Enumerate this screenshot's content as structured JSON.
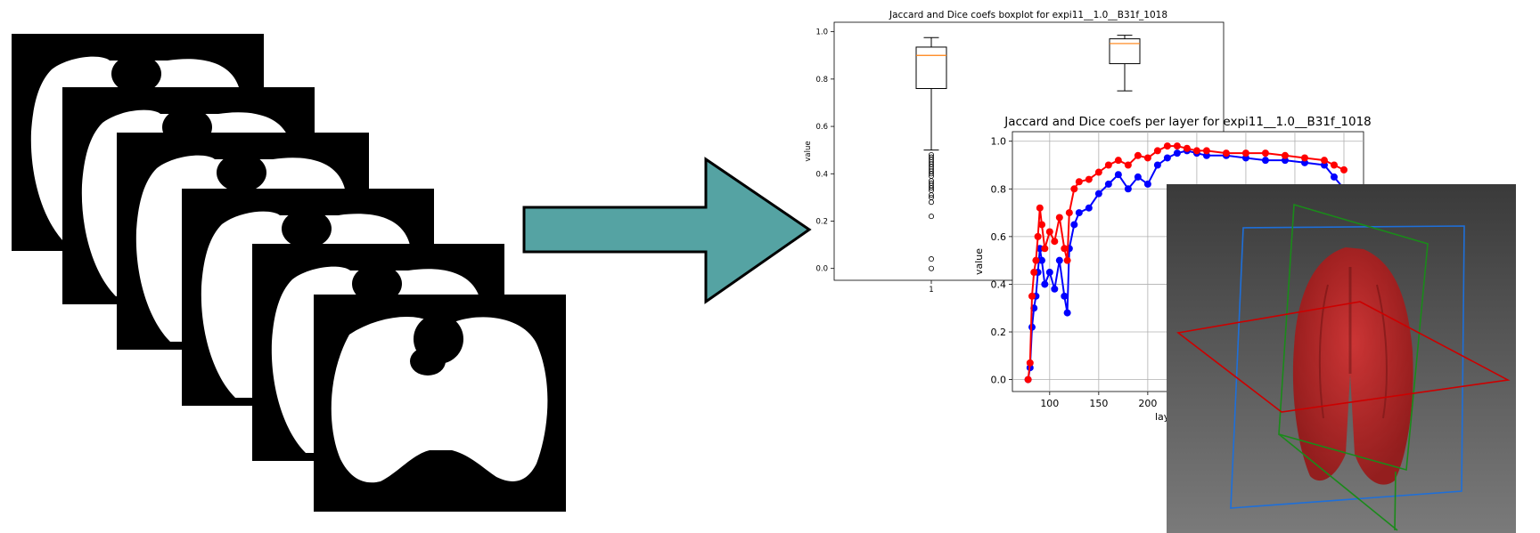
{
  "boxplot": {
    "title": "Jaccard and Dice coefs boxplot for expi11__1.0__B31f_1018",
    "ylabel": "value",
    "xtick": "1",
    "yticks": [
      "0.0",
      "0.2",
      "0.4",
      "0.6",
      "0.8",
      "1.0"
    ]
  },
  "lineplot": {
    "title": "Jaccard and Dice coefs per layer for expi11__1.0__B31f_1018",
    "ylabel": "value",
    "xlabel_visible": "lay",
    "xticks": [
      "100",
      "150",
      "200"
    ],
    "yticks": [
      "0.0",
      "0.2",
      "0.4",
      "0.6",
      "0.8",
      "1.0"
    ]
  },
  "chart_data": [
    {
      "type": "box",
      "title": "Jaccard and Dice coefs boxplot for expi11__1.0__B31f_1018",
      "ylabel": "value",
      "ylim": [
        -0.05,
        1.04
      ],
      "boxes": [
        {
          "position": "1",
          "whisker_low": 0.5,
          "q1": 0.76,
          "median": 0.9,
          "q3": 0.935,
          "whisker_high": 0.975,
          "outliers": [
            0.48,
            0.47,
            0.46,
            0.45,
            0.44,
            0.43,
            0.42,
            0.41,
            0.4,
            0.39,
            0.37,
            0.36,
            0.35,
            0.34,
            0.33,
            0.31,
            0.3,
            0.28,
            0.22,
            0.04,
            0.0
          ]
        },
        {
          "position": "2",
          "whisker_low": 0.75,
          "q1": 0.865,
          "median": 0.95,
          "q3": 0.97,
          "whisker_high": 0.985,
          "outliers": []
        }
      ]
    },
    {
      "type": "line",
      "title": "Jaccard and Dice coefs per layer for expi11__1.0__B31f_1018",
      "ylabel": "value",
      "ylim": [
        -0.05,
        1.04
      ],
      "series": [
        {
          "color": "#0000ff",
          "x": [
            78,
            80,
            82,
            84,
            86,
            88,
            90,
            92,
            95,
            100,
            105,
            110,
            115,
            118,
            120,
            125,
            130,
            140,
            150,
            160,
            170,
            180,
            190,
            200,
            210,
            220,
            230,
            240,
            250,
            260,
            280,
            300,
            320,
            340,
            360,
            380,
            390,
            400
          ],
          "y": [
            0.0,
            0.05,
            0.22,
            0.3,
            0.35,
            0.45,
            0.55,
            0.5,
            0.4,
            0.45,
            0.38,
            0.5,
            0.35,
            0.28,
            0.55,
            0.65,
            0.7,
            0.72,
            0.78,
            0.82,
            0.86,
            0.8,
            0.85,
            0.82,
            0.9,
            0.93,
            0.95,
            0.96,
            0.95,
            0.94,
            0.94,
            0.93,
            0.92,
            0.92,
            0.91,
            0.9,
            0.85,
            0.8
          ]
        },
        {
          "color": "#ff0000",
          "x": [
            78,
            80,
            82,
            84,
            86,
            88,
            90,
            92,
            95,
            100,
            105,
            110,
            115,
            118,
            120,
            125,
            130,
            140,
            150,
            160,
            170,
            180,
            190,
            200,
            210,
            220,
            230,
            240,
            250,
            260,
            280,
            300,
            320,
            340,
            360,
            380,
            390,
            400
          ],
          "y": [
            0.0,
            0.07,
            0.35,
            0.45,
            0.5,
            0.6,
            0.72,
            0.65,
            0.55,
            0.62,
            0.58,
            0.68,
            0.55,
            0.5,
            0.7,
            0.8,
            0.83,
            0.84,
            0.87,
            0.9,
            0.92,
            0.9,
            0.94,
            0.93,
            0.96,
            0.98,
            0.98,
            0.97,
            0.96,
            0.96,
            0.95,
            0.95,
            0.95,
            0.94,
            0.93,
            0.92,
            0.9,
            0.88
          ]
        }
      ]
    }
  ]
}
